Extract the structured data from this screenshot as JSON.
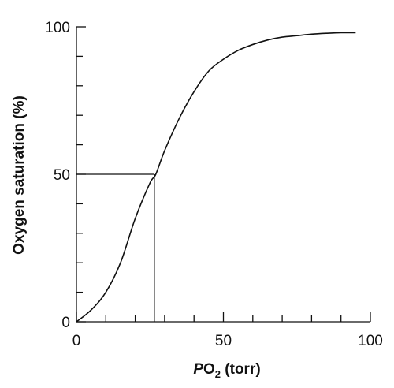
{
  "chart_data": {
    "type": "line",
    "xlabel": {
      "symbol": "P",
      "main": "O",
      "subscript": "2",
      "unit": " (torr)"
    },
    "ylabel": "Oxygen saturation (%)",
    "xlim": [
      0,
      100
    ],
    "ylim": [
      0,
      100
    ],
    "x_ticks": [
      0,
      50,
      100
    ],
    "y_ticks": [
      0,
      50,
      100
    ],
    "x_minor_step": 10,
    "y_minor_step": 10,
    "grid": false,
    "series": [
      {
        "x": [
          0,
          5,
          10,
          15,
          20,
          25,
          27,
          30,
          35,
          40,
          45,
          50,
          55,
          60,
          65,
          70,
          75,
          80,
          85,
          90,
          95
        ],
        "y": [
          0,
          4,
          10,
          20,
          35,
          47,
          50,
          58,
          69,
          78,
          85,
          89,
          92,
          94,
          95.5,
          96.5,
          97,
          97.5,
          97.8,
          98,
          98
        ]
      }
    ],
    "annotations": {
      "p50_x": 26.5,
      "p50_y": 50
    }
  }
}
